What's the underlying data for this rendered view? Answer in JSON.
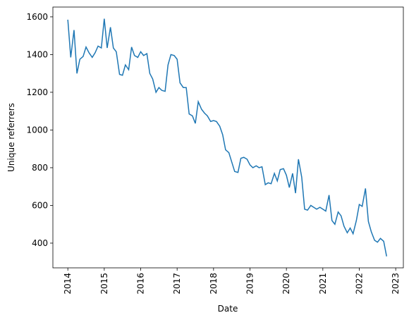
{
  "chart_data": {
    "type": "line",
    "x_label": "Date",
    "y_label": "Unique referrers",
    "x": [
      2014,
      2014.08,
      2014.17,
      2014.25,
      2014.33,
      2014.42,
      2014.5,
      2014.58,
      2014.67,
      2014.75,
      2014.83,
      2014.92,
      2015,
      2015.08,
      2015.17,
      2015.25,
      2015.33,
      2015.42,
      2015.5,
      2015.58,
      2015.67,
      2015.75,
      2015.83,
      2015.92,
      2016,
      2016.08,
      2016.17,
      2016.25,
      2016.33,
      2016.42,
      2016.5,
      2016.58,
      2016.67,
      2016.75,
      2016.83,
      2016.92,
      2017,
      2017.08,
      2017.17,
      2017.25,
      2017.33,
      2017.42,
      2017.5,
      2017.58,
      2017.67,
      2017.75,
      2017.83,
      2017.92,
      2018,
      2018.08,
      2018.17,
      2018.25,
      2018.33,
      2018.42,
      2018.5,
      2018.58,
      2018.67,
      2018.75,
      2018.83,
      2018.92,
      2019,
      2019.08,
      2019.17,
      2019.25,
      2019.33,
      2019.42,
      2019.5,
      2019.58,
      2019.67,
      2019.75,
      2019.83,
      2019.92,
      2020,
      2020.08,
      2020.17,
      2020.25,
      2020.33,
      2020.42,
      2020.5,
      2020.58,
      2020.67,
      2020.75,
      2020.83,
      2020.92,
      2021,
      2021.08,
      2021.17,
      2021.25,
      2021.33,
      2021.42,
      2021.5,
      2021.58,
      2021.67,
      2021.75,
      2021.83,
      2021.92,
      2022,
      2022.08,
      2022.17,
      2022.25,
      2022.33,
      2022.42,
      2022.5,
      2022.58,
      2022.67,
      2022.75
    ],
    "series": [
      {
        "color": "#1f77b4",
        "values": [
          1585,
          1385,
          1530,
          1300,
          1375,
          1390,
          1440,
          1410,
          1385,
          1410,
          1445,
          1435,
          1590,
          1435,
          1545,
          1435,
          1415,
          1295,
          1290,
          1345,
          1320,
          1440,
          1395,
          1385,
          1415,
          1395,
          1405,
          1300,
          1270,
          1200,
          1225,
          1210,
          1205,
          1345,
          1400,
          1395,
          1375,
          1250,
          1225,
          1225,
          1085,
          1075,
          1035,
          1150,
          1110,
          1090,
          1075,
          1045,
          1050,
          1045,
          1020,
          975,
          895,
          880,
          830,
          780,
          775,
          850,
          855,
          845,
          815,
          800,
          810,
          800,
          805,
          710,
          720,
          715,
          770,
          730,
          790,
          795,
          760,
          695,
          770,
          665,
          845,
          750,
          580,
          575,
          600,
          590,
          580,
          590,
          580,
          570,
          655,
          520,
          500,
          565,
          545,
          490,
          455,
          480,
          450,
          520,
          605,
          595,
          690,
          515,
          460,
          415,
          405,
          425,
          410,
          330
        ]
      }
    ],
    "xlim": [
      2013.59,
      2023.21
    ],
    "xticks": [
      2014,
      2015,
      2016,
      2017,
      2018,
      2019,
      2020,
      2021,
      2022,
      2023
    ],
    "ylim": [
      269,
      1652
    ],
    "yticks": [
      400,
      600,
      800,
      1000,
      1200,
      1400,
      1600
    ]
  }
}
